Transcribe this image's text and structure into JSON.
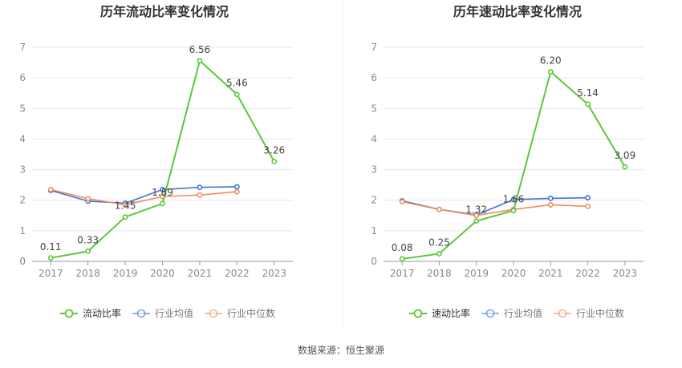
{
  "source_text": "数据来源：恒生聚源",
  "colors": {
    "company": "#5cc83a",
    "industry_avg": "#3f74d8",
    "industry_median": "#f08c5e",
    "grid": "#e4e6ee",
    "axis": "#999999",
    "tick_text": "#888888",
    "label_text": "#444444",
    "title_text": "#333333",
    "divider": "#eeeeee"
  },
  "chart_data": [
    {
      "type": "line",
      "title": "历年流动比率变化情况",
      "categories": [
        "2017",
        "2018",
        "2019",
        "2020",
        "2021",
        "2022",
        "2023"
      ],
      "ylim": [
        0,
        7
      ],
      "yticks": [
        "0",
        "1",
        "2",
        "3",
        "4",
        "5",
        "6",
        "7"
      ],
      "grid": true,
      "legend_position": "bottom",
      "series": [
        {
          "name": "流动比率",
          "color_key": "company",
          "values": [
            0.11,
            0.33,
            1.45,
            1.89,
            6.56,
            5.46,
            3.26
          ],
          "labels": [
            "0.11",
            "0.33",
            "1.45",
            "1.89",
            "6.56",
            "5.46",
            "3.26"
          ]
        },
        {
          "name": "行业均值",
          "color_key": "industry_avg",
          "values": [
            2.32,
            1.97,
            1.9,
            2.35,
            2.42,
            2.44,
            null
          ]
        },
        {
          "name": "行业中位数",
          "color_key": "industry_median",
          "values": [
            2.35,
            2.05,
            1.85,
            2.12,
            2.17,
            2.28,
            null
          ]
        }
      ]
    },
    {
      "type": "line",
      "title": "历年速动比率变化情况",
      "categories": [
        "2017",
        "2018",
        "2019",
        "2020",
        "2021",
        "2022",
        "2023"
      ],
      "ylim": [
        0,
        7
      ],
      "yticks": [
        "0",
        "1",
        "2",
        "3",
        "4",
        "5",
        "6",
        "7"
      ],
      "grid": true,
      "legend_position": "bottom",
      "series": [
        {
          "name": "速动比率",
          "color_key": "company",
          "values": [
            0.08,
            0.25,
            1.32,
            1.66,
            6.2,
            5.14,
            3.09
          ],
          "labels": [
            "0.08",
            "0.25",
            "1.32",
            "1.66",
            "6.20",
            "5.14",
            "3.09"
          ]
        },
        {
          "name": "行业均值",
          "color_key": "industry_avg",
          "values": [
            1.98,
            1.7,
            1.52,
            2.02,
            2.06,
            2.08,
            null
          ]
        },
        {
          "name": "行业中位数",
          "color_key": "industry_median",
          "values": [
            1.95,
            1.7,
            1.5,
            1.7,
            1.85,
            1.8,
            null
          ]
        }
      ]
    }
  ]
}
